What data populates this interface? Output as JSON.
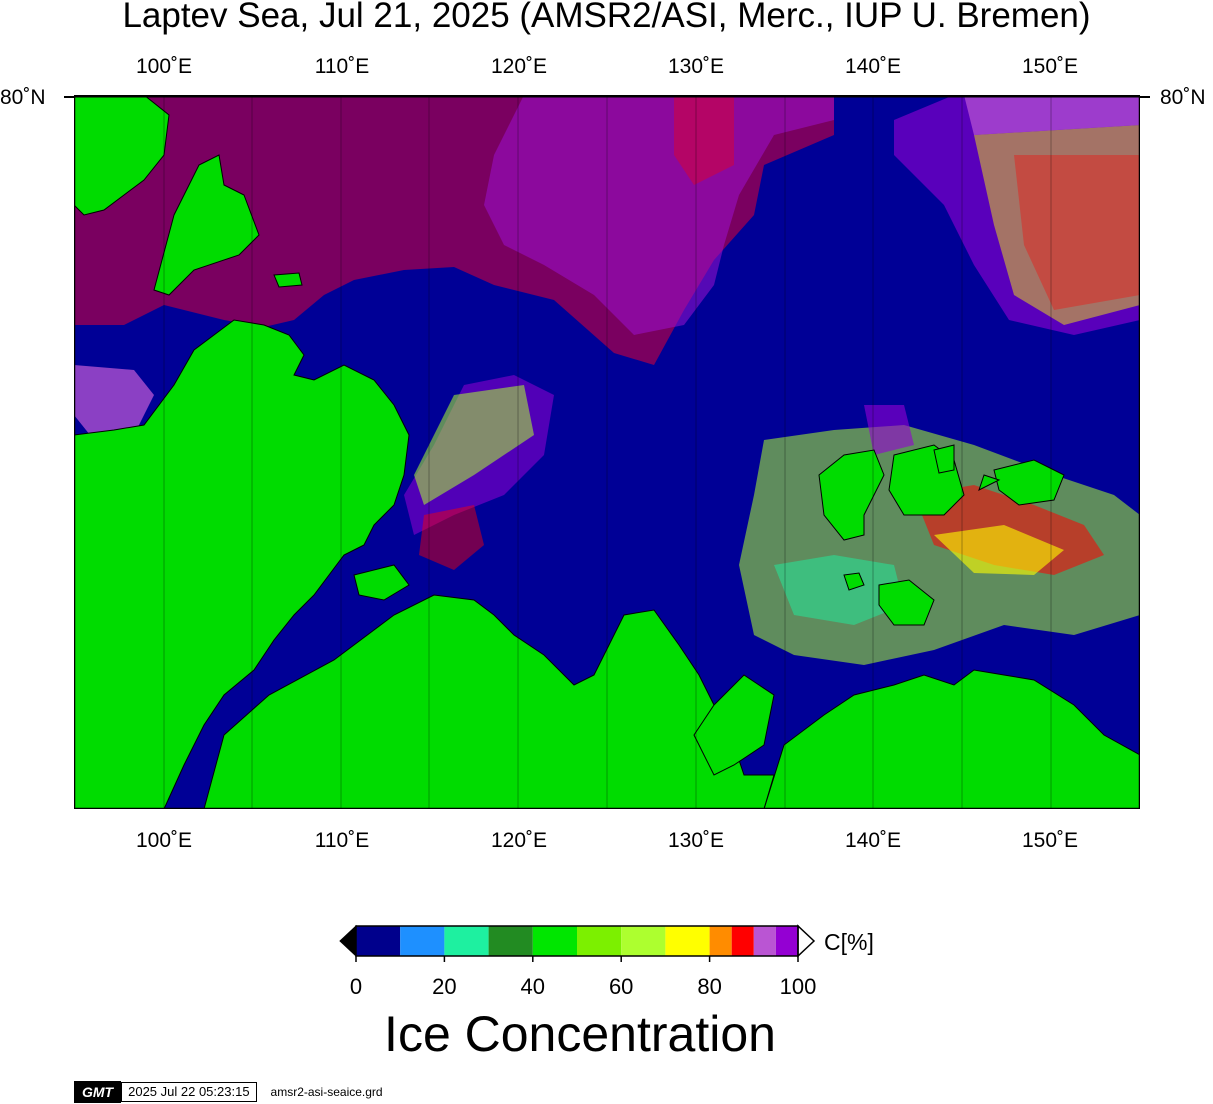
{
  "title": "Laptev Sea, Jul 21, 2025 (AMSR2/ASI, Merc., IUP U. Bremen)",
  "map": {
    "lon_labels": [
      "100˚E",
      "110˚E",
      "120˚E",
      "130˚E",
      "140˚E",
      "150˚E"
    ],
    "lon_values": [
      100,
      110,
      120,
      130,
      140,
      150
    ],
    "lon_range": [
      95,
      155
    ],
    "lat_label_left": "80˚N",
    "lat_label_right": "80˚N",
    "colors": {
      "water": "#000096",
      "land": "#00dc00",
      "border": "#000000"
    }
  },
  "colorbar": {
    "unit": "C[%]",
    "tick_labels": [
      "0",
      "20",
      "40",
      "60",
      "80",
      "100"
    ],
    "tick_values": [
      0,
      20,
      40,
      60,
      80,
      100
    ],
    "bins": [
      {
        "from": 0,
        "to": 10,
        "color": "#00008c"
      },
      {
        "from": 10,
        "to": 20,
        "color": "#1e90ff"
      },
      {
        "from": 20,
        "to": 30,
        "color": "#1ef0a0"
      },
      {
        "from": 30,
        "to": 40,
        "color": "#228b22"
      },
      {
        "from": 40,
        "to": 50,
        "color": "#00e600"
      },
      {
        "from": 50,
        "to": 60,
        "color": "#7cf000"
      },
      {
        "from": 60,
        "to": 70,
        "color": "#adff2f"
      },
      {
        "from": 70,
        "to": 80,
        "color": "#ffff00"
      },
      {
        "from": 80,
        "to": 85,
        "color": "#ff8c00"
      },
      {
        "from": 85,
        "to": 90,
        "color": "#ff0000"
      },
      {
        "from": 90,
        "to": 95,
        "color": "#ba55d3"
      },
      {
        "from": 95,
        "to": 100,
        "color": "#9400d3"
      }
    ],
    "over_color": "#ffffff",
    "under_color": "#000000"
  },
  "legend_title": "Ice Concentration",
  "footer": {
    "logo": "GMT",
    "timestamp": "2025 Jul 22 05:23:15",
    "filename": "amsr2-asi-seaice.grd"
  }
}
